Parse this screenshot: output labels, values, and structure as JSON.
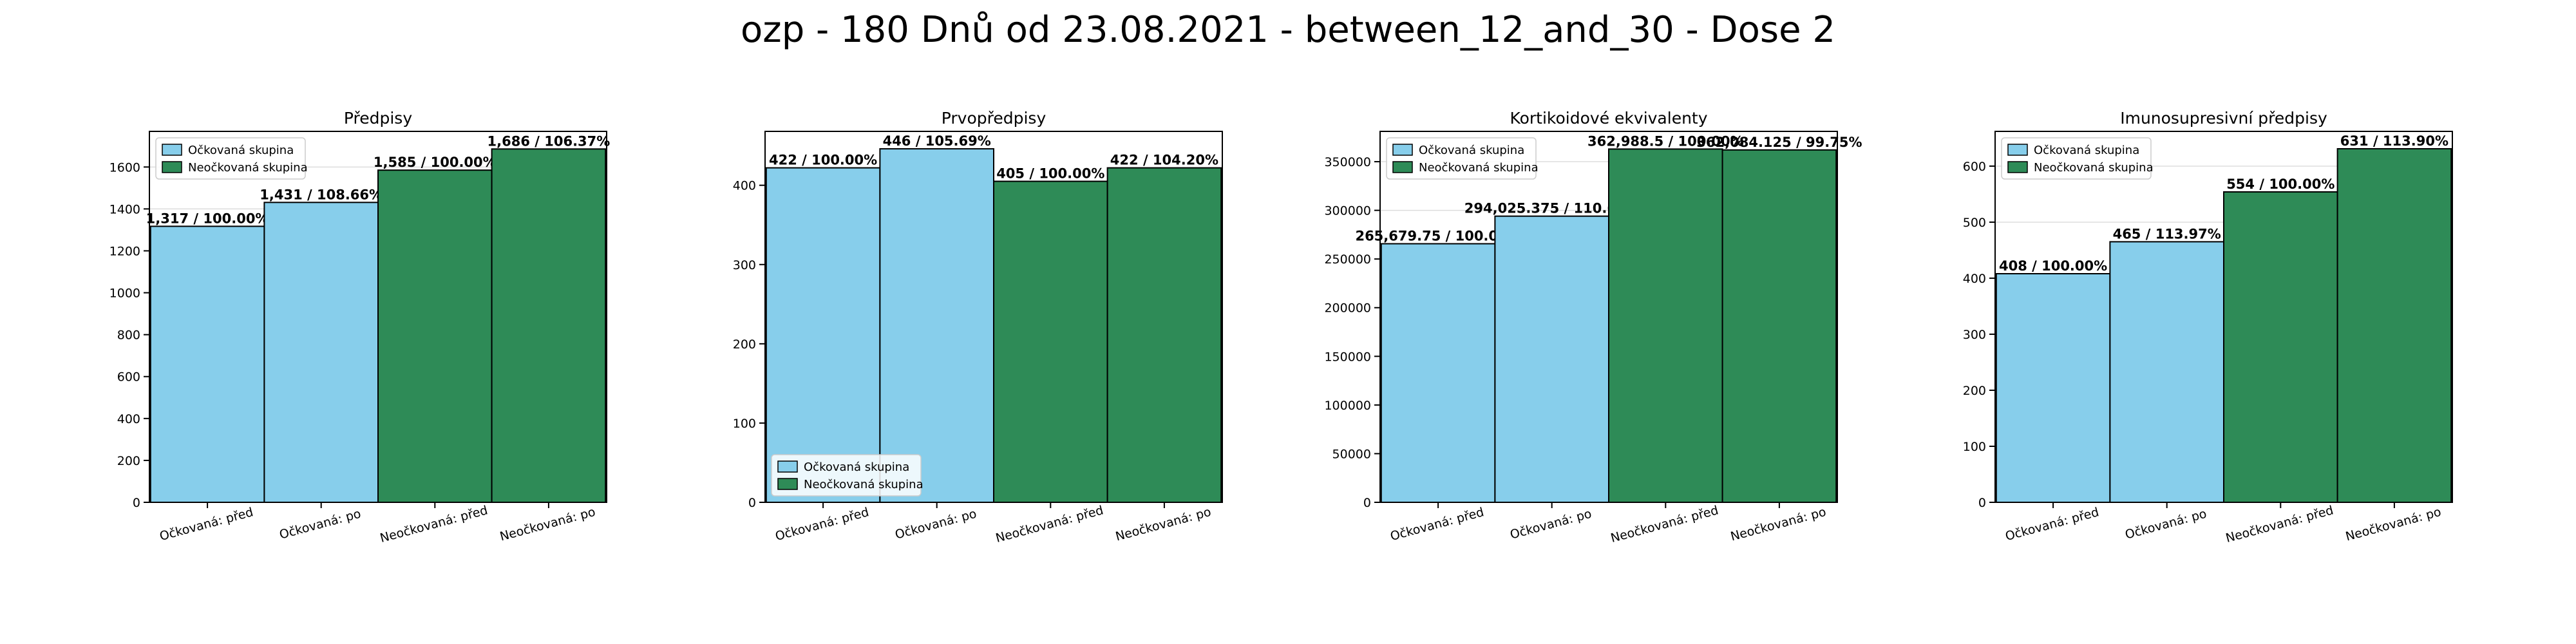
{
  "figure": {
    "suptitle": "ozp - 180 Dnů od 23.08.2021 - between_12_and_30 - Dose 2",
    "colors": {
      "vaccinated": "#87CEEB",
      "unvaccinated": "#2E8B57",
      "edge": "#000000",
      "grid": "#dddddd"
    }
  },
  "chart_data": [
    {
      "type": "bar",
      "title": "Předpisy",
      "categories": [
        "Očkovaná: před",
        "Očkovaná: po",
        "Neočkovaná: před",
        "Neočkovaná: po"
      ],
      "values": [
        1317,
        1431,
        1585,
        1686
      ],
      "value_labels": [
        "1,317 / 100.00%",
        "1,431 / 108.66%",
        "1,585 / 100.00%",
        "1,686 / 106.37%"
      ],
      "bar_groups": [
        "vaccinated",
        "vaccinated",
        "unvaccinated",
        "unvaccinated"
      ],
      "ylim": [
        0,
        1770
      ],
      "yticks": [
        0,
        200,
        400,
        600,
        800,
        1000,
        1200,
        1400,
        1600
      ],
      "ytick_labels": [
        "0",
        "200",
        "400",
        "600",
        "800",
        "1000",
        "1200",
        "1400",
        "1600"
      ],
      "legend": {
        "placement": "upper-left",
        "entries": [
          "Očkovaná skupina",
          "Neočkovaná skupina"
        ]
      },
      "grid": true
    },
    {
      "type": "bar",
      "title": "Prvopředpisy",
      "categories": [
        "Očkovaná: před",
        "Očkovaná: po",
        "Neočkovaná: před",
        "Neočkovaná: po"
      ],
      "values": [
        422,
        446,
        405,
        422
      ],
      "value_labels": [
        "422 / 100.00%",
        "446 / 105.69%",
        "405 / 100.00%",
        "422 / 104.20%"
      ],
      "bar_groups": [
        "vaccinated",
        "vaccinated",
        "unvaccinated",
        "unvaccinated"
      ],
      "ylim": [
        0,
        468
      ],
      "yticks": [
        0,
        100,
        200,
        300,
        400
      ],
      "ytick_labels": [
        "0",
        "100",
        "200",
        "300",
        "400"
      ],
      "legend": {
        "placement": "lower-left",
        "entries": [
          "Očkovaná skupina",
          "Neočkovaná skupina"
        ]
      },
      "grid": true
    },
    {
      "type": "bar",
      "title": "Kortikoidové ekvivalenty",
      "categories": [
        "Očkovaná: před",
        "Očkovaná: po",
        "Neočkovaná: před",
        "Neočkovaná: po"
      ],
      "values": [
        265679.75,
        294025.375,
        362988.5,
        362084.125
      ],
      "value_labels": [
        "265,679.75 / 100.00%",
        "294,025.375 / 110.67%",
        "362,988.5 / 100.00%",
        "362,084.125 / 99.75%"
      ],
      "bar_groups": [
        "vaccinated",
        "vaccinated",
        "unvaccinated",
        "unvaccinated"
      ],
      "ylim": [
        0,
        381138
      ],
      "yticks": [
        0,
        50000,
        100000,
        150000,
        200000,
        250000,
        300000,
        350000
      ],
      "ytick_labels": [
        "0",
        "50000",
        "100000",
        "150000",
        "200000",
        "250000",
        "300000",
        "350000"
      ],
      "legend": {
        "placement": "upper-left",
        "entries": [
          "Očkovaná skupina",
          "Neočkovaná skupina"
        ]
      },
      "grid": true
    },
    {
      "type": "bar",
      "title": "Imunosupresivní předpisy",
      "categories": [
        "Očkovaná: před",
        "Očkovaná: po",
        "Neočkovaná: před",
        "Neočkovaná: po"
      ],
      "values": [
        408,
        465,
        554,
        631
      ],
      "value_labels": [
        "408 / 100.00%",
        "465 / 113.97%",
        "554 / 100.00%",
        "631 / 113.90%"
      ],
      "bar_groups": [
        "vaccinated",
        "vaccinated",
        "unvaccinated",
        "unvaccinated"
      ],
      "ylim": [
        0,
        662
      ],
      "yticks": [
        0,
        100,
        200,
        300,
        400,
        500,
        600
      ],
      "ytick_labels": [
        "0",
        "100",
        "200",
        "300",
        "400",
        "500",
        "600"
      ],
      "legend": {
        "placement": "upper-left",
        "entries": [
          "Očkovaná skupina",
          "Neočkovaná skupina"
        ]
      },
      "grid": true
    }
  ]
}
